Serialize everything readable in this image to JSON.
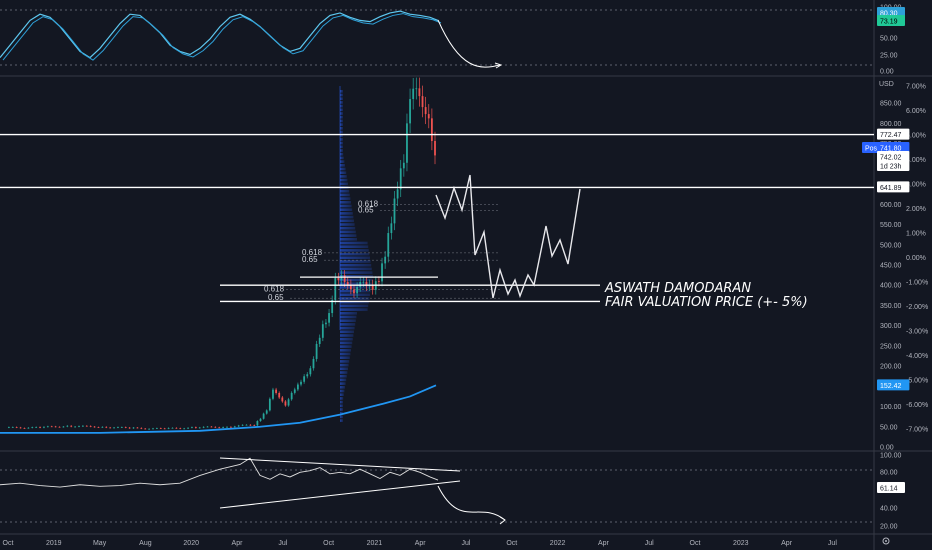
{
  "chart_data": {
    "type": "candlestick",
    "currency": "USD",
    "x_ticks": [
      "Oct",
      "2019",
      "May",
      "Aug",
      "2020",
      "Apr",
      "Jul",
      "Oct",
      "2021",
      "Apr",
      "Jul",
      "Oct",
      "2022",
      "Apr",
      "Jul",
      "Oct",
      "2023",
      "Apr",
      "Jul"
    ],
    "price_axis": {
      "ticks": [
        "850.00",
        "800.00",
        "750.00",
        "700.00",
        "650.00",
        "600.00",
        "550.00",
        "500.00",
        "450.00",
        "400.00",
        "350.00",
        "300.00",
        "250.00",
        "200.00",
        "150.00",
        "100.00",
        "50.00",
        "0.00"
      ],
      "percent_ticks": [
        "7.00%",
        "6.00%",
        "5.00%",
        "4.00%",
        "3.00%",
        "2.00%",
        "1.00%",
        "0.00%",
        "-1.00%",
        "-2.00%",
        "-3.00%",
        "-4.00%",
        "-5.00%",
        "-6.00%",
        "-7.00%"
      ],
      "ylim": [
        0,
        900
      ]
    },
    "price_labels": {
      "resistance": "772.47",
      "post": "Post",
      "post_value": "741.80",
      "last": "742.02",
      "countdown": "1d 23h",
      "support": "641.89",
      "ma": "152.42"
    },
    "horizontal_levels": [
      772.47,
      641.89,
      400,
      360
    ],
    "fib_labels": [
      {
        "ratio": "0.618",
        "price": 595
      },
      {
        "ratio": "0.65",
        "price": 580
      },
      {
        "ratio": "0.618",
        "price": 475
      },
      {
        "ratio": "0.65",
        "price": 457
      },
      {
        "ratio": "0.618",
        "price": 385
      },
      {
        "ratio": "0.65",
        "price": 363
      }
    ],
    "annotation_lines": [
      "ASWATH DAMODARAN",
      "FAIR VALUATION PRICE (+- 5%)"
    ],
    "close_path": [
      [
        0,
        48
      ],
      [
        10,
        48
      ],
      [
        20,
        52
      ],
      [
        30,
        50
      ],
      [
        40,
        47
      ],
      [
        50,
        45
      ],
      [
        60,
        48
      ],
      [
        70,
        50
      ],
      [
        80,
        55
      ],
      [
        82,
        70
      ],
      [
        84,
        90
      ],
      [
        86,
        140
      ],
      [
        88,
        120
      ],
      [
        90,
        100
      ],
      [
        92,
        130
      ],
      [
        94,
        150
      ],
      [
        96,
        170
      ],
      [
        98,
        190
      ],
      [
        100,
        250
      ],
      [
        102,
        300
      ],
      [
        104,
        330
      ],
      [
        106,
        420
      ],
      [
        108,
        430
      ],
      [
        110,
        410
      ],
      [
        112,
        390
      ],
      [
        114,
        420
      ],
      [
        116,
        410
      ],
      [
        118,
        400
      ],
      [
        120,
        420
      ],
      [
        122,
        480
      ],
      [
        124,
        560
      ],
      [
        126,
        640
      ],
      [
        128,
        700
      ],
      [
        130,
        850
      ],
      [
        132,
        870
      ],
      [
        134,
        820
      ],
      [
        136,
        790
      ],
      [
        138,
        700
      ]
    ],
    "projection": [
      [
        436,
        195
      ],
      [
        445,
        218
      ],
      [
        454,
        188
      ],
      [
        462,
        210
      ],
      [
        470,
        175
      ],
      [
        475,
        255
      ],
      [
        484,
        232
      ],
      [
        493,
        298
      ],
      [
        500,
        270
      ],
      [
        508,
        294
      ],
      [
        515,
        280
      ],
      [
        520,
        296
      ],
      [
        528,
        275
      ],
      [
        534,
        285
      ],
      [
        546,
        226
      ],
      [
        552,
        256
      ],
      [
        560,
        240
      ],
      [
        568,
        264
      ],
      [
        580,
        189
      ]
    ],
    "volume_profile": true,
    "stoch": {
      "ticks": [
        "100.00",
        "75.00",
        "50.00",
        "25.00",
        "0.00"
      ],
      "labels": [
        "80.30",
        "73.19"
      ],
      "k": [
        [
          0,
          20
        ],
        [
          10,
          40
        ],
        [
          20,
          60
        ],
        [
          30,
          80
        ],
        [
          40,
          90
        ],
        [
          50,
          85
        ],
        [
          60,
          70
        ],
        [
          70,
          50
        ],
        [
          80,
          30
        ],
        [
          90,
          20
        ],
        [
          100,
          35
        ],
        [
          110,
          55
        ],
        [
          120,
          75
        ],
        [
          130,
          90
        ],
        [
          140,
          88
        ],
        [
          150,
          75
        ],
        [
          160,
          60
        ],
        [
          170,
          40
        ],
        [
          180,
          30
        ],
        [
          190,
          25
        ],
        [
          200,
          35
        ],
        [
          210,
          50
        ],
        [
          220,
          70
        ],
        [
          230,
          85
        ],
        [
          240,
          90
        ],
        [
          250,
          82
        ],
        [
          260,
          70
        ],
        [
          270,
          55
        ],
        [
          280,
          40
        ],
        [
          290,
          30
        ],
        [
          300,
          35
        ],
        [
          310,
          55
        ],
        [
          320,
          75
        ],
        [
          330,
          88
        ],
        [
          340,
          92
        ],
        [
          350,
          85
        ],
        [
          360,
          80
        ],
        [
          370,
          78
        ],
        [
          380,
          86
        ],
        [
          390,
          92
        ],
        [
          400,
          95
        ],
        [
          410,
          90
        ],
        [
          420,
          88
        ],
        [
          430,
          85
        ],
        [
          438,
          80
        ]
      ]
    },
    "rsi": {
      "ticks": [
        "100.00",
        "80.00",
        "60.00",
        "40.00",
        "20.00"
      ],
      "label": "61.14",
      "line": [
        [
          0,
          58
        ],
        [
          20,
          60
        ],
        [
          40,
          57
        ],
        [
          60,
          55
        ],
        [
          80,
          58
        ],
        [
          100,
          56
        ],
        [
          120,
          57
        ],
        [
          140,
          60
        ],
        [
          160,
          58
        ],
        [
          180,
          60
        ],
        [
          200,
          70
        ],
        [
          220,
          78
        ],
        [
          240,
          84
        ],
        [
          250,
          92
        ],
        [
          260,
          70
        ],
        [
          270,
          65
        ],
        [
          280,
          72
        ],
        [
          290,
          68
        ],
        [
          300,
          74
        ],
        [
          310,
          76
        ],
        [
          320,
          80
        ],
        [
          330,
          72
        ],
        [
          340,
          74
        ],
        [
          350,
          72
        ],
        [
          360,
          78
        ],
        [
          370,
          72
        ],
        [
          380,
          66
        ],
        [
          390,
          74
        ],
        [
          400,
          70
        ],
        [
          410,
          78
        ],
        [
          420,
          74
        ],
        [
          430,
          68
        ],
        [
          438,
          64
        ]
      ]
    }
  }
}
